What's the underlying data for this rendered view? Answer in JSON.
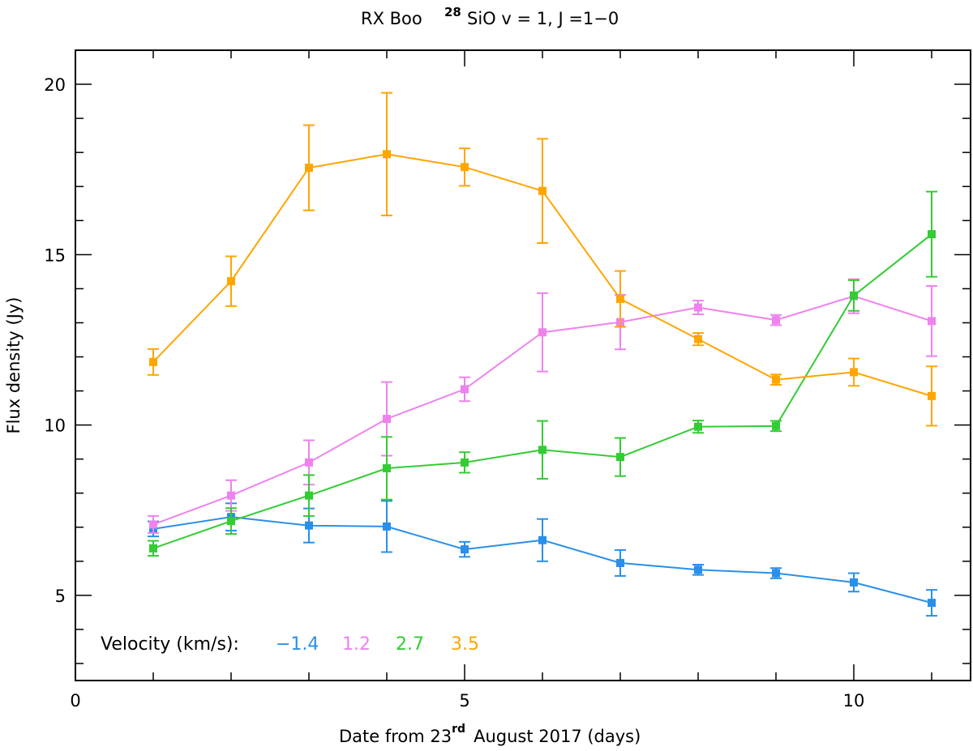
{
  "chart_data": {
    "type": "line",
    "title": {
      "star": "RX Boo",
      "isotope": "28",
      "line": "SiO v = 1, J =1−0"
    },
    "xlabel": {
      "prefix": "Date from 23",
      "suffix_sup": "rd",
      "rest": "August 2017 (days)"
    },
    "ylabel": "Flux density (Jy)",
    "xlim": [
      0,
      11.5
    ],
    "ylim": [
      2.5,
      21
    ],
    "xticks": [
      0,
      5,
      10
    ],
    "yticks": [
      5,
      10,
      15,
      20
    ],
    "x": [
      1,
      2,
      3,
      4,
      5,
      6,
      7,
      8,
      9,
      10,
      11
    ],
    "legend": {
      "title": "Velocity (km/s):",
      "placement": "bottom-left"
    },
    "series": [
      {
        "name": "−1.4",
        "color": "#2a8fe8",
        "values": [
          6.95,
          7.3,
          7.05,
          7.02,
          6.35,
          6.62,
          5.95,
          5.75,
          5.65,
          5.38,
          4.78
        ],
        "errors": [
          0.22,
          0.4,
          0.5,
          0.75,
          0.22,
          0.62,
          0.38,
          0.15,
          0.15,
          0.27,
          0.38
        ]
      },
      {
        "name": "1.2",
        "color": "#ee82ee",
        "values": [
          7.08,
          7.93,
          8.9,
          10.18,
          11.05,
          12.72,
          13.02,
          13.45,
          13.08,
          13.78,
          13.05
        ],
        "errors": [
          0.25,
          0.45,
          0.65,
          1.08,
          0.35,
          1.15,
          0.8,
          0.2,
          0.15,
          0.5,
          1.03
        ]
      },
      {
        "name": "2.7",
        "color": "#33cc33",
        "values": [
          6.38,
          7.18,
          7.93,
          8.73,
          8.9,
          9.27,
          9.06,
          9.95,
          9.97,
          13.8,
          15.6
        ],
        "errors": [
          0.22,
          0.38,
          0.6,
          0.92,
          0.3,
          0.85,
          0.56,
          0.18,
          0.15,
          0.45,
          1.25
        ]
      },
      {
        "name": "3.5",
        "color": "#ffa500",
        "values": [
          11.85,
          14.22,
          17.55,
          17.95,
          17.57,
          16.87,
          13.7,
          12.52,
          11.33,
          11.55,
          10.85
        ],
        "errors": [
          0.38,
          0.73,
          1.25,
          1.8,
          0.55,
          1.53,
          0.82,
          0.18,
          0.15,
          0.4,
          0.87
        ]
      }
    ]
  }
}
